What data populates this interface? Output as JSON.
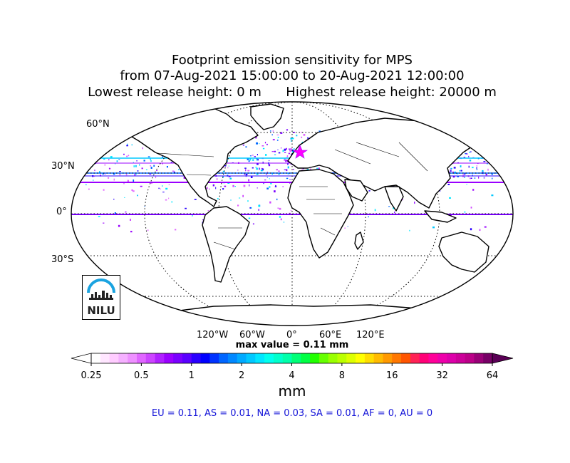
{
  "title": {
    "line1": "Footprint emission sensitivity for MPS",
    "line2": "from 07-Aug-2021 15:00:00 to 20-Aug-2021 12:00:00",
    "line3": "Lowest release height: 0 m      Highest release height: 20000 m"
  },
  "lat_labels": [
    "60°N",
    "30°N",
    "0°",
    "30°S"
  ],
  "lon_labels": [
    "120°W",
    "60°W",
    "0°",
    "60°E",
    "120°E"
  ],
  "max_value_text": "max value = 0.11 mm",
  "colorbar": {
    "ticks": [
      "0.25",
      "0.5",
      "1",
      "2",
      "4",
      "8",
      "16",
      "32",
      "64"
    ],
    "unit": "mm",
    "colors": [
      "#ffffff",
      "#ffe6ff",
      "#ffccff",
      "#f5b0ff",
      "#ee90ff",
      "#e066ff",
      "#cc44ff",
      "#b020ff",
      "#9a00ff",
      "#7a00ff",
      "#5a00ff",
      "#2a00ff",
      "#0000ff",
      "#0033ff",
      "#0066ff",
      "#0088ff",
      "#00aaff",
      "#00c8ff",
      "#00e6ff",
      "#00ffee",
      "#00ffcc",
      "#00ffaa",
      "#00ff77",
      "#00ff44",
      "#22ff00",
      "#66ff00",
      "#99ff00",
      "#bbff00",
      "#ddff00",
      "#ffff00",
      "#ffdd00",
      "#ffbb00",
      "#ff9900",
      "#ff7700",
      "#ff5500",
      "#ff2255",
      "#ff0077",
      "#ff0099",
      "#ee00aa",
      "#dd00aa",
      "#cc0099",
      "#bb0088",
      "#990077",
      "#770066"
    ]
  },
  "regions_text": "EU = 0.11,  AS = 0.01,  NA = 0.03,  SA = 0.01,  AF = 0,  AU = 0",
  "logo": {
    "text": "NILU",
    "color": "#1aa3e0"
  },
  "colors": {
    "coast": "#000000",
    "lat_band_purple": "#9a00ff",
    "lat_band_cyan": "#00c8ff",
    "release_marker": "#ff00ff"
  }
}
